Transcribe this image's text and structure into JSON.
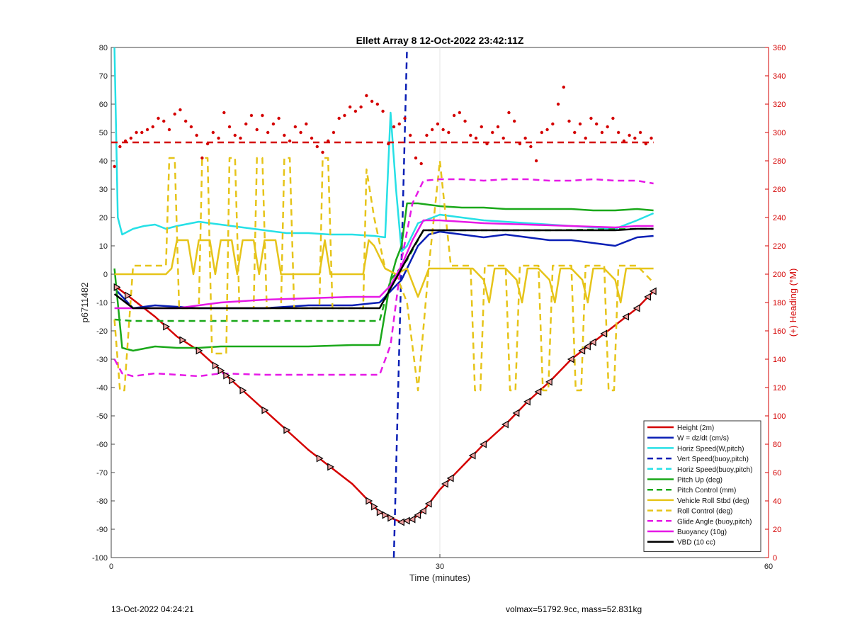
{
  "chart_data": {
    "type": "line",
    "title": "Ellett Array 8 12-Oct-2022 23:42:11Z",
    "xlabel": "Time (minutes)",
    "ylabel": "p6711482",
    "ylabel_right": "(+) Heading (°M)",
    "xlim": [
      0,
      60
    ],
    "ylim": [
      -100,
      80
    ],
    "ylim_right": [
      0,
      360
    ],
    "x_ticks": [
      0,
      30,
      60
    ],
    "y_ticks": [
      80,
      70,
      60,
      50,
      40,
      30,
      20,
      10,
      0,
      -10,
      -20,
      -30,
      -40,
      -50,
      -60,
      -70,
      -80,
      -90,
      -100
    ],
    "y_ticks_right": [
      360,
      340,
      320,
      300,
      280,
      260,
      240,
      220,
      200,
      180,
      160,
      140,
      120,
      100,
      80,
      60,
      40,
      20,
      0
    ],
    "grid": "x only",
    "legend_position": "bottom-right",
    "colors": {
      "right_axis": "#d40000"
    },
    "series": [
      {
        "name": "Height (2m)",
        "color": "#d40000",
        "style": "solid",
        "x": [
          0.3,
          2,
          4,
          6,
          8,
          10,
          12,
          14,
          16,
          18,
          20,
          22,
          23.5,
          24.5,
          25.5,
          26.5,
          27.5,
          28.5,
          30,
          32,
          34,
          36,
          38,
          40,
          42,
          44,
          46,
          48,
          49.5
        ],
        "y": [
          -4,
          -9,
          -15,
          -22,
          -27,
          -34,
          -41,
          -48,
          -55,
          -62,
          -68,
          -74,
          -80,
          -84,
          -86,
          -87.5,
          -86.5,
          -83.5,
          -76,
          -68,
          -60,
          -53,
          -45,
          -38,
          -30,
          -24,
          -18,
          -12,
          -6
        ]
      },
      {
        "name": "W = dz/dt (cm/s)",
        "color": "#0a1fb5",
        "style": "solid",
        "x": [
          0.3,
          2,
          4,
          6,
          8,
          10,
          14,
          18,
          22,
          24.5,
          25.5,
          26.5,
          28,
          29,
          30,
          32,
          34,
          36,
          38,
          40,
          42,
          44,
          46,
          48,
          49.5
        ],
        "y": [
          -5,
          -12,
          -11,
          -11.5,
          -12,
          -12,
          -12,
          -11,
          -11,
          -10,
          -6,
          -2,
          10,
          14,
          15,
          14,
          13,
          14,
          13,
          12,
          12,
          11,
          10,
          13,
          13.5
        ]
      },
      {
        "name": "Horiz Speed(W,pitch)",
        "color": "#26e0e6",
        "style": "solid",
        "x": [
          0.3,
          0.6,
          1,
          2,
          3,
          4,
          5,
          6,
          8,
          10,
          12,
          14,
          16,
          18,
          20,
          22,
          24,
          25,
          25.5,
          26,
          26.5,
          27,
          28,
          30,
          32,
          34,
          36,
          38,
          40,
          42,
          44,
          46,
          48,
          49.5
        ],
        "y": [
          80,
          20,
          14,
          16,
          17,
          17.5,
          16,
          17,
          18.5,
          17.5,
          16.5,
          15.5,
          14.5,
          14.5,
          14,
          14,
          13.5,
          13,
          57,
          30,
          8,
          10,
          18,
          21,
          20,
          19,
          18.5,
          18,
          17.5,
          17,
          16.5,
          16,
          19,
          21.5
        ]
      },
      {
        "name": "Vert Speed(buoy,pitch)",
        "color": "#0a1fb5",
        "style": "dashed",
        "x": [
          25.8,
          27.0
        ],
        "y": [
          -100,
          80
        ]
      },
      {
        "name": "Horiz Speed(buoy,pitch)",
        "color": "#26e0e6",
        "style": "dashed",
        "x": [],
        "y": []
      },
      {
        "name": "Pitch Up (deg)",
        "color": "#1aa81a",
        "style": "solid",
        "x": [
          0.3,
          1,
          2,
          4,
          6,
          8,
          10,
          14,
          18,
          22,
          24.5,
          25.5,
          26,
          26.5,
          27,
          28,
          30,
          32,
          34,
          36,
          38,
          40,
          42,
          44,
          46,
          48,
          49.5
        ],
        "y": [
          2,
          -26,
          -27,
          -25.5,
          -26,
          -26,
          -25.5,
          -25.5,
          -25.5,
          -25,
          -25,
          -2,
          5,
          10,
          25,
          25,
          24,
          23.5,
          23.5,
          23,
          23,
          23,
          23,
          22.5,
          22.5,
          23,
          22.5
        ]
      },
      {
        "name": "Pitch Control (mm)",
        "color": "#1aa81a",
        "style": "dashed",
        "x": [
          0.3,
          2,
          10,
          20,
          24.5,
          25.5,
          27,
          28.5,
          32,
          40,
          48,
          49.5
        ],
        "y": [
          -16,
          -16.5,
          -16.5,
          -16.5,
          -16.5,
          -2,
          5,
          15.5,
          15.5,
          15.5,
          16,
          16
        ]
      },
      {
        "name": "Vehicle Roll Stbd (deg)",
        "color": "#e6c419",
        "style": "solid",
        "x": [
          0.3,
          1,
          2,
          5,
          5.5,
          6,
          7,
          7.5,
          8,
          9,
          9.5,
          10,
          11,
          11.5,
          12,
          13,
          13.5,
          14,
          15,
          15.5,
          16,
          18,
          19,
          19.5,
          20,
          23,
          23.5,
          24,
          25,
          26,
          27,
          28,
          29,
          30,
          31,
          33,
          34,
          34.5,
          35,
          36,
          37,
          37.5,
          38,
          39,
          40,
          40.5,
          41,
          42,
          43,
          43.5,
          44,
          45,
          46,
          46.5,
          47,
          48,
          49.5
        ],
        "y": [
          0,
          0,
          0,
          0,
          2,
          12,
          12,
          0,
          12,
          12,
          0,
          12,
          12,
          0,
          12,
          12,
          0,
          12,
          12,
          0,
          0,
          0,
          0,
          12,
          0,
          0,
          12,
          10,
          2,
          0,
          2,
          -8,
          2,
          2,
          2,
          2,
          -2,
          -10,
          2,
          2,
          -2,
          -10,
          2,
          2,
          -2,
          -10,
          2,
          2,
          -2,
          -10,
          2,
          2,
          -2,
          -10,
          2,
          2,
          2
        ]
      },
      {
        "name": "Roll Control (deg)",
        "color": "#e6c419",
        "style": "dashed",
        "x": [
          0.3,
          0.8,
          1.2,
          2,
          5,
          5.3,
          5.8,
          6.2,
          8,
          8.3,
          8.8,
          9.2,
          10.5,
          10.8,
          11.3,
          11.7,
          13,
          13.3,
          13.8,
          14.2,
          15.5,
          15.8,
          16.3,
          16.7,
          19,
          19.3,
          19.8,
          20.2,
          23,
          23.3,
          24,
          25,
          26,
          27,
          28,
          29,
          30,
          31,
          32.8,
          33.2,
          33.7,
          34.1,
          36,
          36.4,
          36.9,
          37.3,
          39,
          39.4,
          39.9,
          40.3,
          42,
          42.4,
          42.9,
          43.3,
          45,
          45.4,
          45.9,
          46.3,
          48,
          49.5
        ],
        "y": [
          -16,
          -41,
          -41,
          3,
          3,
          41,
          41,
          -12,
          -12,
          41,
          41,
          -28,
          -28,
          41,
          41,
          -12,
          -12,
          41,
          41,
          -12,
          -12,
          41,
          41,
          -12,
          -12,
          41,
          41,
          -12,
          -12,
          37,
          20,
          2,
          0,
          -10,
          -41,
          3,
          40,
          3,
          3,
          -41,
          -41,
          3,
          3,
          -41,
          -41,
          3,
          3,
          -41,
          -41,
          3,
          3,
          -41,
          -41,
          3,
          3,
          -41,
          -41,
          3,
          3,
          -3
        ]
      },
      {
        "name": "Glide Angle (buoy,pitch)",
        "color": "#e619e6",
        "style": "dashed",
        "x": [
          0.3,
          1,
          2,
          4,
          6,
          8,
          10,
          14,
          18,
          22,
          24.5,
          25.5,
          26.5,
          27.5,
          28.5,
          30,
          32,
          34,
          36,
          38,
          40,
          42,
          44,
          46,
          48,
          49.5
        ],
        "y": [
          -30,
          -35,
          -36,
          -35,
          -35.5,
          -36,
          -35,
          -35.5,
          -35.5,
          -35.5,
          -35.5,
          -25,
          5,
          25,
          33,
          33.5,
          33.5,
          33,
          33.5,
          33.5,
          33,
          33,
          33.5,
          33,
          33,
          32
        ]
      },
      {
        "name": "Buoyancy (10g)",
        "color": "#e619e6",
        "style": "solid",
        "x": [
          0.3,
          2,
          6,
          8,
          10,
          14,
          18,
          22,
          24.5,
          25.5,
          26.5,
          27.5,
          28.5,
          30,
          34,
          38,
          42,
          46,
          48,
          49.5
        ],
        "y": [
          -12,
          -12,
          -12,
          -11,
          -10,
          -9,
          -8.5,
          -8,
          -8,
          -4,
          3,
          12,
          19,
          19,
          18,
          17.5,
          17,
          16.5,
          17,
          17
        ]
      },
      {
        "name": "VBD (10 cc)",
        "color": "#000000",
        "style": "solid",
        "x": [
          0.3,
          2,
          6,
          10,
          14,
          18,
          22,
          24.5,
          25.5,
          26.5,
          27.5,
          28.5,
          30,
          34,
          38,
          42,
          46,
          48,
          49.5
        ],
        "y": [
          -7,
          -12,
          -12,
          -12,
          -12,
          -12,
          -12,
          -12,
          -5,
          2,
          9,
          15.5,
          15.5,
          15.5,
          15.5,
          15.5,
          15.5,
          16,
          16
        ]
      },
      {
        "name": "Heading",
        "axis": "right",
        "color": "#d40000",
        "style": "dashed",
        "x": [
          0,
          49.5
        ],
        "y": [
          293,
          293
        ]
      }
    ],
    "heading_points": {
      "axis": "right",
      "color": "#d40000",
      "x": [
        0.3,
        0.8,
        1.3,
        1.8,
        2.3,
        2.8,
        3.3,
        3.8,
        4.3,
        4.8,
        5.3,
        5.8,
        6.3,
        6.8,
        7.3,
        7.8,
        8.3,
        8.8,
        9.3,
        9.8,
        10.3,
        10.8,
        11.3,
        11.8,
        12.3,
        12.8,
        13.3,
        13.8,
        14.3,
        14.8,
        15.3,
        15.8,
        16.3,
        16.8,
        17.3,
        17.8,
        18.3,
        18.8,
        19.3,
        19.8,
        20.3,
        20.8,
        21.3,
        21.8,
        22.3,
        22.8,
        23.3,
        23.8,
        24.3,
        24.8,
        25.3,
        25.8,
        26.3,
        26.8,
        27.3,
        27.8,
        28.3,
        28.8,
        29.3,
        29.8,
        30.3,
        30.8,
        31.3,
        31.8,
        32.3,
        32.8,
        33.3,
        33.8,
        34.3,
        34.8,
        35.3,
        35.8,
        36.3,
        36.8,
        37.3,
        37.8,
        38.3,
        38.8,
        39.3,
        39.8,
        40.3,
        40.8,
        41.3,
        41.8,
        42.3,
        42.8,
        43.3,
        43.8,
        44.3,
        44.8,
        45.3,
        45.8,
        46.3,
        46.8,
        47.3,
        47.8,
        48.3,
        48.8,
        49.3
      ],
      "y": [
        276,
        290,
        294,
        296,
        300,
        300,
        302,
        304,
        310,
        308,
        302,
        313,
        316,
        308,
        304,
        298,
        282,
        292,
        300,
        296,
        314,
        304,
        298,
        296,
        306,
        312,
        302,
        312,
        300,
        306,
        310,
        298,
        294,
        304,
        300,
        306,
        296,
        290,
        286,
        294,
        300,
        310,
        312,
        318,
        315,
        318,
        326,
        322,
        320,
        315,
        292,
        304,
        306,
        310,
        298,
        282,
        278,
        298,
        302,
        306,
        302,
        300,
        312,
        314,
        308,
        298,
        296,
        304,
        292,
        300,
        304,
        296,
        314,
        308,
        292,
        296,
        290,
        280,
        300,
        302,
        306,
        320,
        332,
        308,
        300,
        306,
        296,
        310,
        306,
        300,
        304,
        310,
        300,
        294,
        298,
        296,
        300,
        292,
        296
      ]
    },
    "markers": {
      "shape": "triangle",
      "color": "#000000",
      "fill": "#f0a0a0",
      "series": "Height (2m)",
      "x_down": [
        0.5,
        1.5,
        5,
        6.5,
        8,
        9.5,
        10,
        10.5,
        11,
        12,
        14,
        16,
        19,
        20,
        23.5,
        24,
        24.5,
        25,
        25.5
      ],
      "x_up": [
        26.5,
        27,
        27.5,
        28,
        28.5,
        29,
        30.5,
        31,
        33,
        34,
        36,
        37,
        38,
        39,
        40,
        42,
        43,
        43.5,
        44,
        45,
        47,
        48,
        49,
        49.5
      ]
    },
    "annotations": {
      "footer_left": "13-Oct-2022 04:24:21",
      "footer_right": "volmax=51792.9cc, mass=52.831kg"
    }
  }
}
